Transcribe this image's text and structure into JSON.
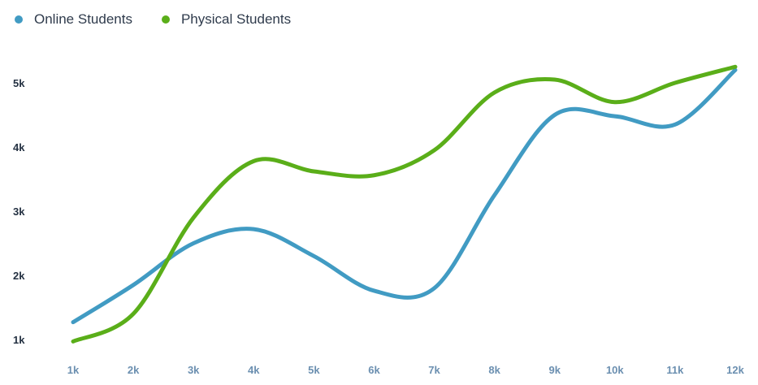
{
  "chart_data": {
    "type": "line",
    "categories": [
      "1k",
      "2k",
      "3k",
      "4k",
      "5k",
      "6k",
      "7k",
      "8k",
      "9k",
      "10k",
      "11k",
      "12k"
    ],
    "y_tick_labels": [
      "1k",
      "2k",
      "3k",
      "4k",
      "5k"
    ],
    "y_tick_values": [
      1000,
      2000,
      3000,
      4000,
      5000
    ],
    "ylim": [
      1000,
      5000
    ],
    "title": "",
    "xlabel": "",
    "ylabel": "",
    "legend_position": "top-left",
    "grid": false,
    "series": [
      {
        "name": "Online Students",
        "color": "#419bc3",
        "values": [
          1270,
          1850,
          2500,
          2720,
          2300,
          1760,
          1800,
          3250,
          4500,
          4480,
          4350,
          5200
        ]
      },
      {
        "name": "Physical Students",
        "color": "#5aae19",
        "values": [
          970,
          1400,
          2900,
          3780,
          3620,
          3560,
          3950,
          4850,
          5050,
          4700,
          5000,
          5250
        ]
      }
    ]
  }
}
